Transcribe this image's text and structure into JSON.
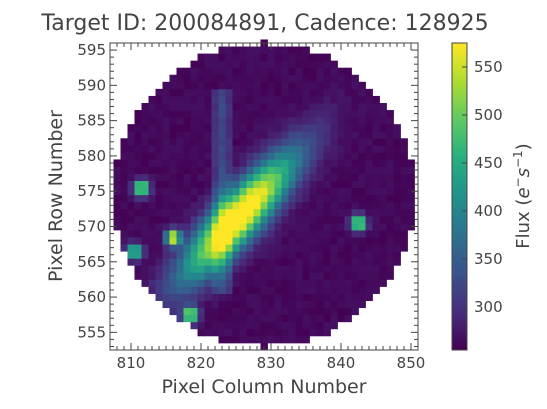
{
  "chart_data": {
    "type": "heatmap",
    "title": "Target ID: 200084891, Cadence: 128925",
    "xlabel": "Pixel Column Number",
    "ylabel": "Pixel Row Number",
    "xlim": [
      807,
      851
    ],
    "ylim": [
      552.5,
      596
    ],
    "x_ticks": [
      810,
      820,
      830,
      840,
      850
    ],
    "y_ticks": [
      555,
      560,
      565,
      570,
      575,
      580,
      585,
      590,
      595
    ],
    "colorbar": {
      "label": "Flux ($e^{-}s^{-1}$)",
      "label_main": "Flux (",
      "label_e": "e",
      "label_sup1": "−",
      "label_s": "s",
      "label_sup2": "−1",
      "label_close": ")",
      "min": 255,
      "max": 575,
      "ticks": [
        300,
        350,
        400,
        450,
        500,
        550
      ],
      "colormap": "viridis"
    },
    "aperture": {
      "shape": "circular",
      "center": [
        829,
        574.5
      ],
      "radius": 21.5
    },
    "background_flux": 262,
    "sources": [
      {
        "kind": "elongated-streak",
        "center": [
          825.5,
          571.5
        ],
        "peak": 575,
        "length": 26,
        "width": 2.2,
        "angle_deg": 48
      },
      {
        "kind": "vertical-streak",
        "center": [
          823,
          574
        ],
        "peak": 330,
        "x_range": [
          822,
          824
        ],
        "y_range": [
          561,
          589
        ]
      },
      {
        "kind": "point",
        "center": [
          811.5,
          575.5
        ],
        "peak": 575
      },
      {
        "kind": "point",
        "center": [
          816,
          568.5
        ],
        "peak": 575
      },
      {
        "kind": "point",
        "center": [
          810.5,
          566.5
        ],
        "peak": 520
      },
      {
        "kind": "point",
        "center": [
          842.5,
          570.5
        ],
        "peak": 575
      },
      {
        "kind": "point",
        "center": [
          818.5,
          557.5
        ],
        "peak": 575
      }
    ],
    "grid": false,
    "tick_direction": "in"
  }
}
